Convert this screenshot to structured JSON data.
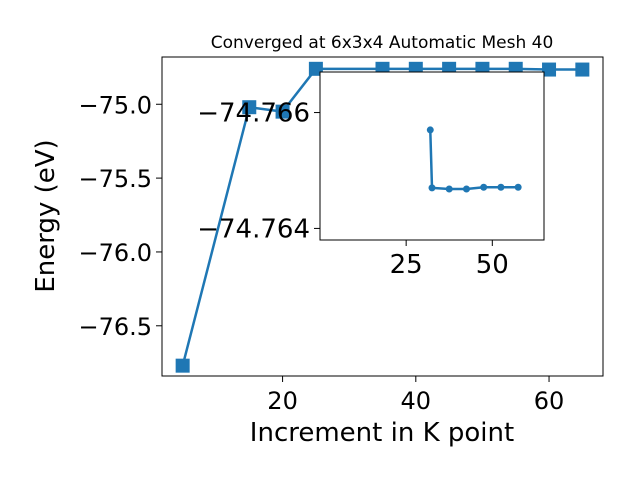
{
  "chart_data": [
    {
      "type": "line",
      "title": "Converged at 6x3x4 Automatic Mesh 40",
      "xlabel": "Increment in K point",
      "ylabel": "Energy (eV)",
      "xlim": [
        1.9,
        68.1
      ],
      "ylim": [
        -76.84,
        -74.68
      ],
      "xticks": [
        20,
        40,
        60
      ],
      "yticks": [
        -75.0,
        -75.5,
        -76.0,
        -76.5
      ],
      "ytick_labels": [
        "−75.0",
        "−75.5",
        "−76.0",
        "−76.5"
      ],
      "marker": "square",
      "grid": false,
      "series": [
        {
          "color": "#1f77b4",
          "x": [
            5,
            15,
            20,
            25,
            35,
            40,
            45,
            50,
            55,
            60,
            65
          ],
          "y": [
            -76.77,
            -75.02,
            -75.05,
            -74.76,
            -74.76,
            -74.76,
            -74.76,
            -74.76,
            -74.76,
            -74.765,
            -74.765
          ]
        }
      ]
    },
    {
      "type": "line",
      "title": "",
      "xlabel": "",
      "ylabel": "",
      "xlim": [
        0.0,
        65.0
      ],
      "ylim": [
        -74.7638,
        -74.7667
      ],
      "xticks": [
        25,
        50
      ],
      "yticks": [
        -74.766,
        -74.764
      ],
      "ytick_labels": [
        "−74.766",
        "−74.764"
      ],
      "marker": "circle",
      "grid": false,
      "series": [
        {
          "color": "#1f77b4",
          "x": [
            32.0,
            32.5,
            37.5,
            42.5,
            47.5,
            52.5,
            57.5
          ],
          "y": [
            -74.7657,
            -74.7647,
            -74.76468,
            -74.76468,
            -74.76471,
            -74.76471,
            -74.76471
          ]
        }
      ]
    }
  ]
}
